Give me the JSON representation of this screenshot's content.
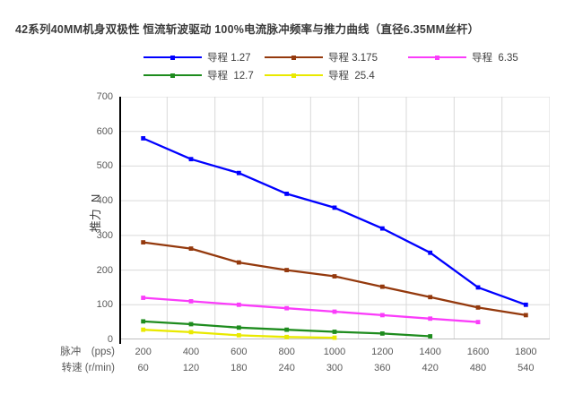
{
  "title": "42系列40MM机身双极性 恒流斩波驱动 100%电流脉冲频率与推力曲线（直径6.35MM丝杆）",
  "y_axis_title": "推力  N",
  "x_axis_row_labels": {
    "pps": "脉冲　(pps)",
    "rpm": "转速 (r/min)"
  },
  "chart_data": {
    "type": "line",
    "title": "42系列40MM机身双极性 恒流斩波驱动 100%电流脉冲频率与推力曲线（直径6.35MM丝杆）",
    "xlabel_row1": "脉冲　(pps)",
    "xlabel_row2": "转速 (r/min)",
    "ylabel": "推力 N",
    "ylim": [
      0,
      700
    ],
    "ytick_step": 100,
    "grid": true,
    "legend_position": "top",
    "categories_pps": [
      200,
      400,
      600,
      800,
      1000,
      1200,
      1400,
      1600,
      1800
    ],
    "categories_rpm": [
      60,
      120,
      180,
      240,
      300,
      360,
      420,
      480,
      540
    ],
    "series": [
      {
        "name": "导程 1.27",
        "color": "#0000FF",
        "values": [
          580,
          520,
          480,
          420,
          380,
          320,
          250,
          150,
          100
        ]
      },
      {
        "name": "导程 3.175",
        "color": "#94390D",
        "values": [
          280,
          262,
          222,
          200,
          182,
          152,
          122,
          92,
          70
        ]
      },
      {
        "name": "导程  6.35",
        "color": "#FA3CFA",
        "values": [
          120,
          110,
          100,
          90,
          80,
          70,
          60,
          50,
          null
        ]
      },
      {
        "name": "导程  12.7",
        "color": "#1E8C1E",
        "values": [
          52,
          44,
          34,
          28,
          22,
          17,
          9,
          null,
          null
        ]
      },
      {
        "name": "导程  25.4",
        "color": "#E9E900",
        "values": [
          28,
          21,
          12,
          7,
          5,
          null,
          null,
          null,
          null
        ]
      }
    ],
    "axis_colors": {
      "y_axis": "#000000",
      "x_axis": "#BFBFBF",
      "gridline": "#D9D9D9"
    }
  }
}
